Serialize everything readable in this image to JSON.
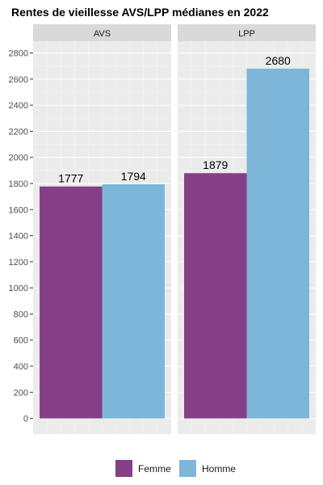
{
  "chart_data": {
    "type": "bar",
    "title": "Rentes de vieillesse AVS/LPP médianes en 2022",
    "xlabel": "",
    "ylabel": "",
    "ylim": [
      -120,
      2890
    ],
    "yticks": [
      0,
      200,
      400,
      600,
      800,
      1000,
      1200,
      1400,
      1600,
      1800,
      2000,
      2200,
      2400,
      2600,
      2800
    ],
    "grid": true,
    "legend_position": "bottom",
    "panels": [
      {
        "strip": "AVS",
        "series": [
          {
            "name": "Femme",
            "value": 1777,
            "label": "1777"
          },
          {
            "name": "Homme",
            "value": 1794,
            "label": "1794"
          }
        ]
      },
      {
        "strip": "LPP",
        "series": [
          {
            "name": "Femme",
            "value": 1879,
            "label": "1879"
          },
          {
            "name": "Homme",
            "value": 2680,
            "label": "2680"
          }
        ]
      }
    ],
    "legend": [
      {
        "name": "Femme",
        "color": "#843F86"
      },
      {
        "name": "Homme",
        "color": "#7EB6D9"
      }
    ]
  },
  "colors": {
    "panel_background": "#EBEBEB",
    "strip_background": "#D9D9D9",
    "grid_major": "#FFFFFF",
    "grid_minor": "#F4F4F4"
  }
}
